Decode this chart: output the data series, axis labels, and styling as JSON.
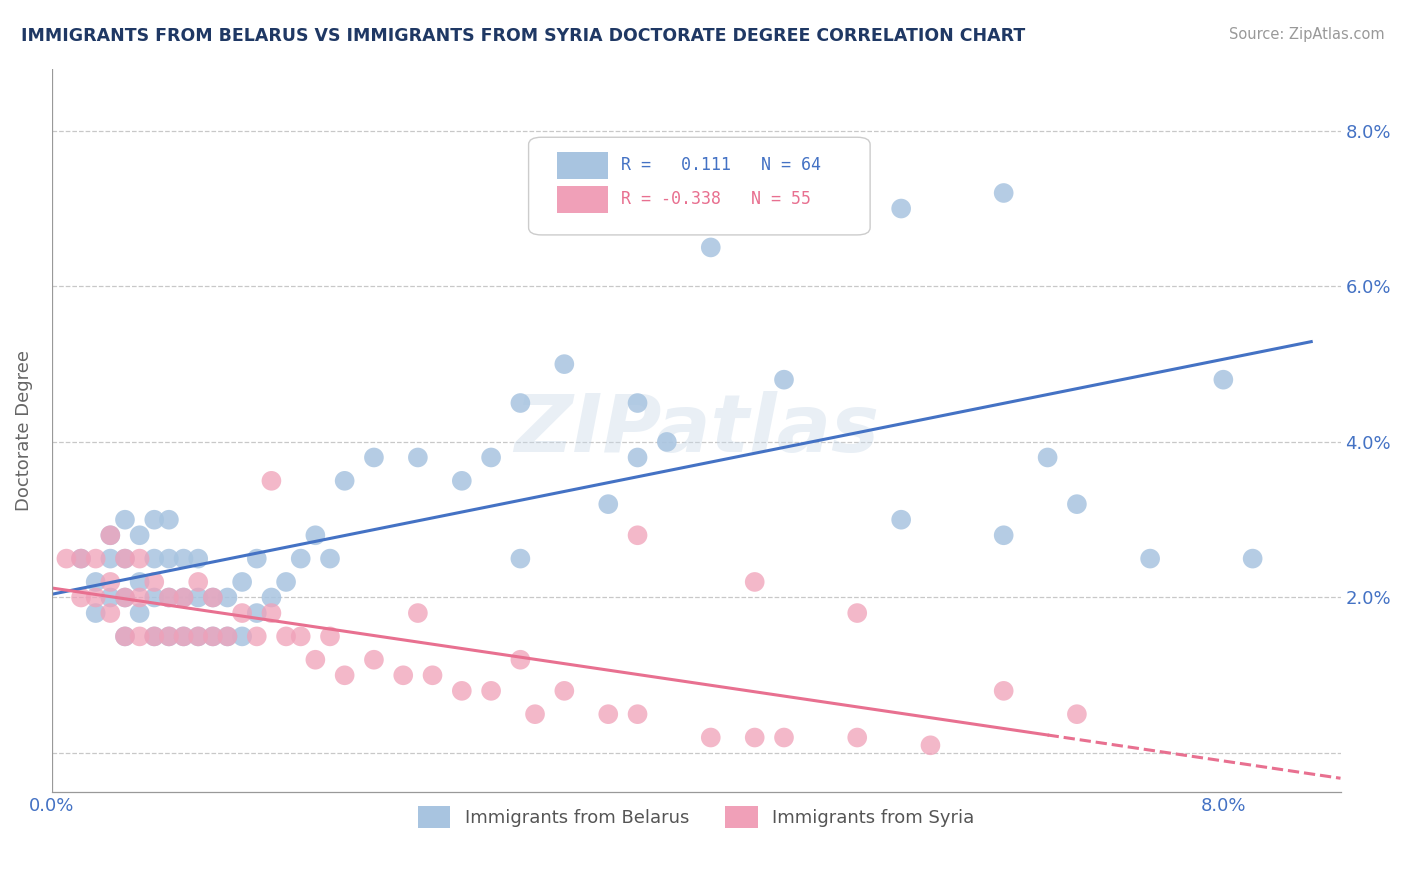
{
  "title": "IMMIGRANTS FROM BELARUS VS IMMIGRANTS FROM SYRIA DOCTORATE DEGREE CORRELATION CHART",
  "source": "Source: ZipAtlas.com",
  "ylabel": "Doctorate Degree",
  "xlim": [
    0.0,
    0.088
  ],
  "ylim": [
    -0.005,
    0.088
  ],
  "belarus_R": 0.111,
  "belarus_N": 64,
  "syria_R": -0.338,
  "syria_N": 55,
  "belarus_color": "#a8c4e0",
  "syria_color": "#f0a0b8",
  "belarus_line_color": "#4472c4",
  "syria_line_color": "#e87090",
  "title_color": "#1f3864",
  "axis_label_color": "#4472c4",
  "legend_r_color_belarus": "#4472c4",
  "legend_r_color_syria": "#e87090",
  "watermark": "ZIPatlas",
  "background_color": "#ffffff",
  "belarus_scatter_x": [
    0.002,
    0.003,
    0.003,
    0.004,
    0.004,
    0.004,
    0.005,
    0.005,
    0.005,
    0.005,
    0.006,
    0.006,
    0.006,
    0.007,
    0.007,
    0.007,
    0.007,
    0.008,
    0.008,
    0.008,
    0.008,
    0.009,
    0.009,
    0.009,
    0.01,
    0.01,
    0.01,
    0.011,
    0.011,
    0.012,
    0.012,
    0.013,
    0.013,
    0.014,
    0.014,
    0.015,
    0.016,
    0.017,
    0.018,
    0.019,
    0.02,
    0.022,
    0.025,
    0.028,
    0.03,
    0.032,
    0.035,
    0.038,
    0.04,
    0.042,
    0.045,
    0.048,
    0.05,
    0.058,
    0.065,
    0.032,
    0.058,
    0.065,
    0.07,
    0.075,
    0.04,
    0.068,
    0.08,
    0.082
  ],
  "belarus_scatter_y": [
    0.025,
    0.018,
    0.022,
    0.02,
    0.025,
    0.028,
    0.015,
    0.02,
    0.025,
    0.03,
    0.018,
    0.022,
    0.028,
    0.015,
    0.02,
    0.025,
    0.03,
    0.015,
    0.02,
    0.025,
    0.03,
    0.015,
    0.02,
    0.025,
    0.015,
    0.02,
    0.025,
    0.015,
    0.02,
    0.015,
    0.02,
    0.015,
    0.022,
    0.018,
    0.025,
    0.02,
    0.022,
    0.025,
    0.028,
    0.025,
    0.035,
    0.038,
    0.038,
    0.035,
    0.038,
    0.045,
    0.05,
    0.032,
    0.038,
    0.04,
    0.065,
    0.07,
    0.048,
    0.07,
    0.072,
    0.025,
    0.03,
    0.028,
    0.032,
    0.025,
    0.045,
    0.038,
    0.048,
    0.025
  ],
  "syria_scatter_x": [
    0.001,
    0.002,
    0.002,
    0.003,
    0.003,
    0.004,
    0.004,
    0.004,
    0.005,
    0.005,
    0.005,
    0.006,
    0.006,
    0.006,
    0.007,
    0.007,
    0.008,
    0.008,
    0.009,
    0.009,
    0.01,
    0.01,
    0.011,
    0.011,
    0.012,
    0.013,
    0.014,
    0.015,
    0.016,
    0.017,
    0.018,
    0.019,
    0.02,
    0.022,
    0.024,
    0.026,
    0.028,
    0.03,
    0.033,
    0.035,
    0.038,
    0.04,
    0.045,
    0.048,
    0.05,
    0.055,
    0.06,
    0.032,
    0.025,
    0.015,
    0.04,
    0.048,
    0.055,
    0.065,
    0.07
  ],
  "syria_scatter_y": [
    0.025,
    0.02,
    0.025,
    0.02,
    0.025,
    0.018,
    0.022,
    0.028,
    0.015,
    0.02,
    0.025,
    0.015,
    0.02,
    0.025,
    0.015,
    0.022,
    0.015,
    0.02,
    0.015,
    0.02,
    0.015,
    0.022,
    0.015,
    0.02,
    0.015,
    0.018,
    0.015,
    0.018,
    0.015,
    0.015,
    0.012,
    0.015,
    0.01,
    0.012,
    0.01,
    0.01,
    0.008,
    0.008,
    0.005,
    0.008,
    0.005,
    0.005,
    0.002,
    0.002,
    0.002,
    0.002,
    0.001,
    0.012,
    0.018,
    0.035,
    0.028,
    0.022,
    0.018,
    0.008,
    0.005
  ]
}
